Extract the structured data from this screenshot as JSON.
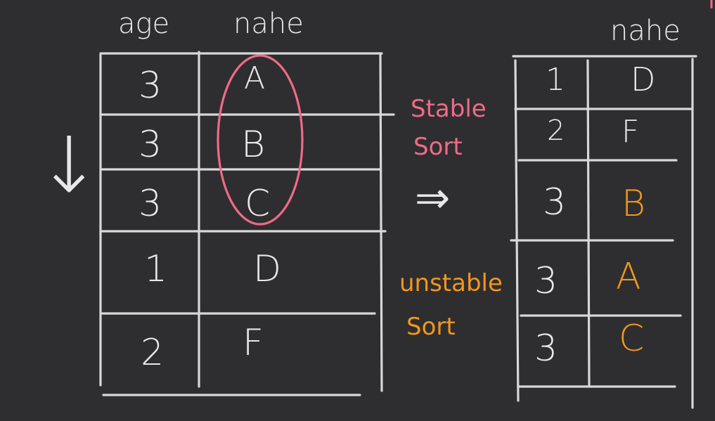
{
  "left_table": {
    "headers": {
      "age": "age",
      "name": "nahe"
    },
    "rows": [
      {
        "age": "3",
        "name": "A"
      },
      {
        "age": "3",
        "name": "B"
      },
      {
        "age": "3",
        "name": "C"
      },
      {
        "age": "1",
        "name": "D"
      },
      {
        "age": "2",
        "name": "F"
      }
    ]
  },
  "stable_note": {
    "line1": "Stable",
    "line2": "Sort",
    "arrow": "⇒"
  },
  "unstable_note": {
    "line1": "unstable",
    "line2": "Sort"
  },
  "right_table": {
    "header": "nahe",
    "rows": [
      {
        "age": "1",
        "name": "D"
      },
      {
        "age": "2",
        "name": "F"
      },
      {
        "age": "3",
        "name": "B"
      },
      {
        "age": "3",
        "name": "A"
      },
      {
        "age": "3",
        "name": "C"
      }
    ]
  },
  "down_arrow": "↓",
  "colors": {
    "background": "#2e2e30",
    "chalk": "#e8e8e8",
    "stable": "#f06a8a",
    "unstable": "#f2961e"
  }
}
